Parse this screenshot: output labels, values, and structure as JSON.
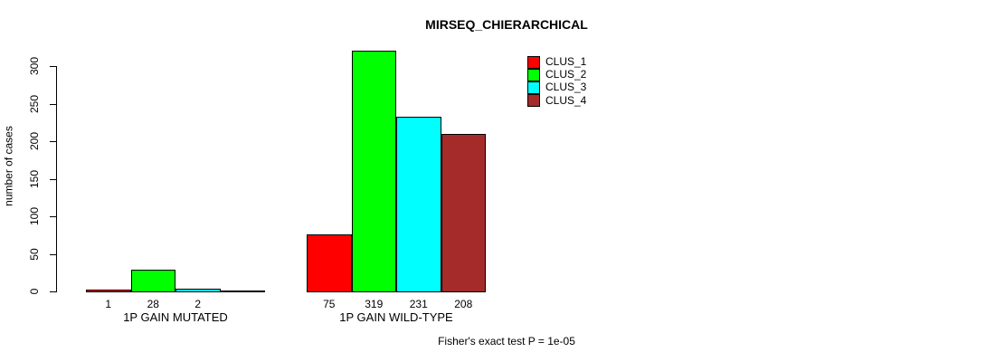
{
  "title": "MIRSEQ_CHIERARCHICAL",
  "chart_data": {
    "type": "bar",
    "title": "MIRSEQ_CHIERARCHICAL",
    "xlabel": "",
    "ylabel": "number of cases",
    "ylim": [
      0,
      300
    ],
    "yticks": [
      0,
      50,
      100,
      150,
      200,
      250,
      300
    ],
    "grid": false,
    "legend_position": "top-right",
    "categories": [
      "1P GAIN MUTATED",
      "1P GAIN WILD-TYPE"
    ],
    "series": [
      {
        "name": "CLUS_1",
        "color": "#FF0000",
        "values": [
          1,
          75
        ]
      },
      {
        "name": "CLUS_2",
        "color": "#00FF00",
        "values": [
          28,
          319
        ]
      },
      {
        "name": "CLUS_3",
        "color": "#00FFFF",
        "values": [
          2,
          231
        ]
      },
      {
        "name": "CLUS_4",
        "color": "#A52A2A",
        "values": [
          0,
          208
        ]
      }
    ],
    "value_labels_shown": [
      "1",
      "28",
      "2",
      "75",
      "319",
      "231",
      "208"
    ],
    "annotation": "Fisher's exact test P = 1e-05"
  }
}
